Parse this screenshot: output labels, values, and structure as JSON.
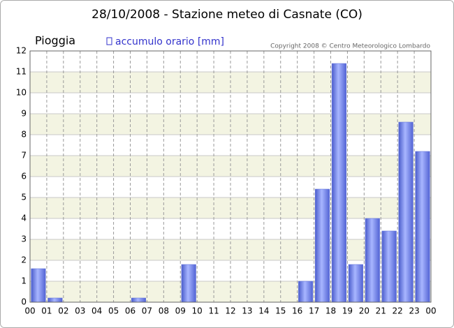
{
  "chart_data": {
    "type": "bar",
    "title": "28/10/2008 - Stazione meteo di Casnate (CO)",
    "subtitle": "Pioggia",
    "copyright": "Copyright 2008 © Centro Meteorologico Lombardo",
    "hour_labels": [
      "00",
      "01",
      "02",
      "03",
      "04",
      "05",
      "06",
      "07",
      "08",
      "09",
      "10",
      "11",
      "12",
      "13",
      "14",
      "15",
      "16",
      "17",
      "18",
      "19",
      "20",
      "21",
      "22",
      "23",
      "00"
    ],
    "series": [
      {
        "name": "accumulo orario [mm]",
        "color": "#6677dd",
        "values": [
          1.6,
          0.2,
          0,
          0,
          0,
          0,
          0.2,
          0,
          0,
          1.8,
          0,
          0,
          0,
          0,
          0,
          0,
          1.0,
          5.4,
          11.4,
          1.8,
          4.0,
          3.4,
          8.6,
          7.2
        ]
      }
    ],
    "ylim": [
      0,
      12
    ],
    "yticks": [
      0,
      1,
      2,
      3,
      4,
      5,
      6,
      7,
      8,
      9,
      10,
      11,
      12
    ],
    "grid": true
  }
}
